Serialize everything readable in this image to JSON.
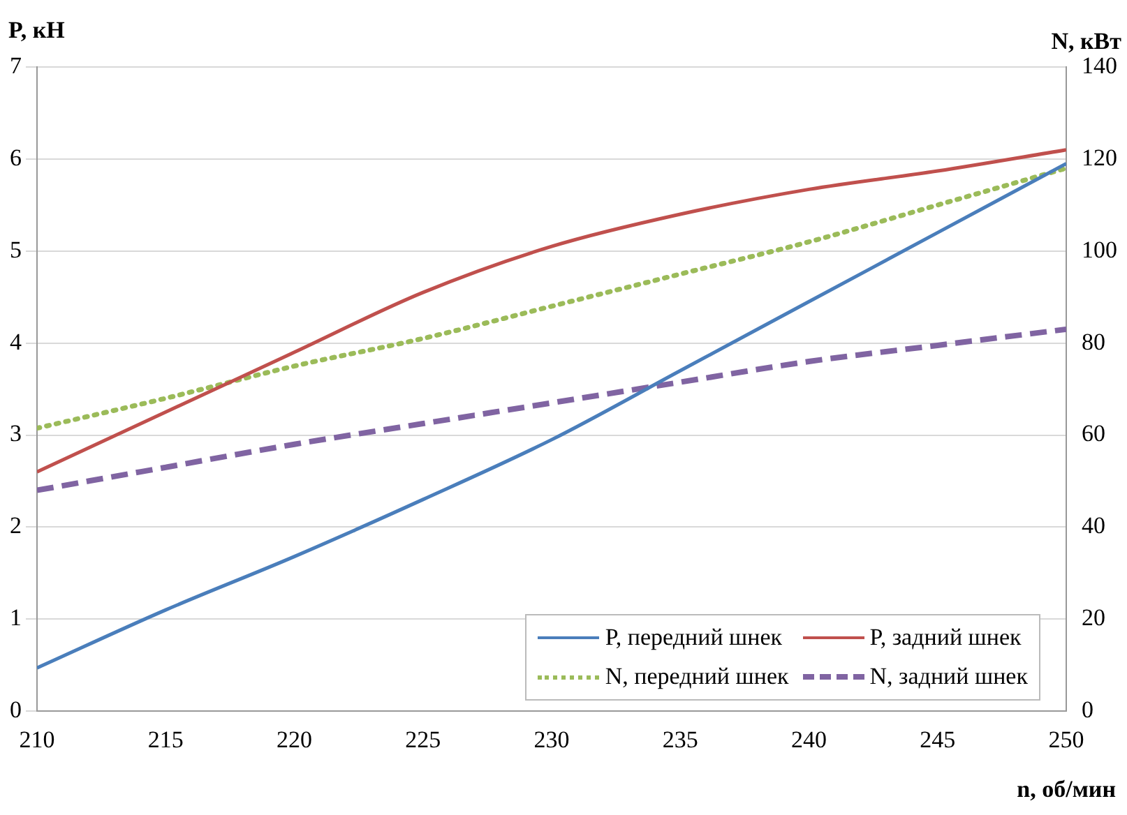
{
  "chart_data": {
    "type": "line",
    "xlabel": "n, об/мин",
    "ylabel": "P, кН",
    "y2label": "N, кВт",
    "x": [
      210,
      215,
      220,
      225,
      230,
      235,
      240,
      245,
      250
    ],
    "series": [
      {
        "name": "P, передний шнек",
        "color": "#4a7ebb",
        "values": [
          0.47,
          1.1,
          1.68,
          2.3,
          2.95,
          3.7,
          4.45,
          5.2,
          5.95
        ],
        "line_style": "solid"
      },
      {
        "name": "P, задний шнек",
        "color": "#c0504d",
        "values": [
          2.6,
          3.25,
          3.9,
          4.55,
          5.05,
          5.4,
          5.67,
          5.87,
          6.1
        ],
        "line_style": "solid"
      },
      {
        "name": "N, передний шнек",
        "color": "#9bbb59",
        "values": [
          61.5,
          68,
          75,
          81,
          88,
          95,
          102,
          110,
          118
        ],
        "axis": "y2",
        "line_style": "dotted"
      },
      {
        "name": "N, задний шнек",
        "color": "#8064a2",
        "values": [
          48,
          53,
          58,
          62.5,
          67,
          71.5,
          76,
          79.5,
          83
        ],
        "axis": "y2",
        "line_style": "dashed"
      }
    ],
    "xlim": [
      210,
      250
    ],
    "xticks": [
      210,
      215,
      220,
      225,
      230,
      235,
      240,
      245,
      250
    ],
    "ylim": [
      0,
      7
    ],
    "yticks": [
      0,
      1,
      2,
      3,
      4,
      5,
      6,
      7
    ],
    "y2lim": [
      0,
      140
    ],
    "y2ticks": [
      0,
      20,
      40,
      60,
      80,
      100,
      120,
      140
    ],
    "grid": "y",
    "legend": "bottom right",
    "marker": "none"
  }
}
